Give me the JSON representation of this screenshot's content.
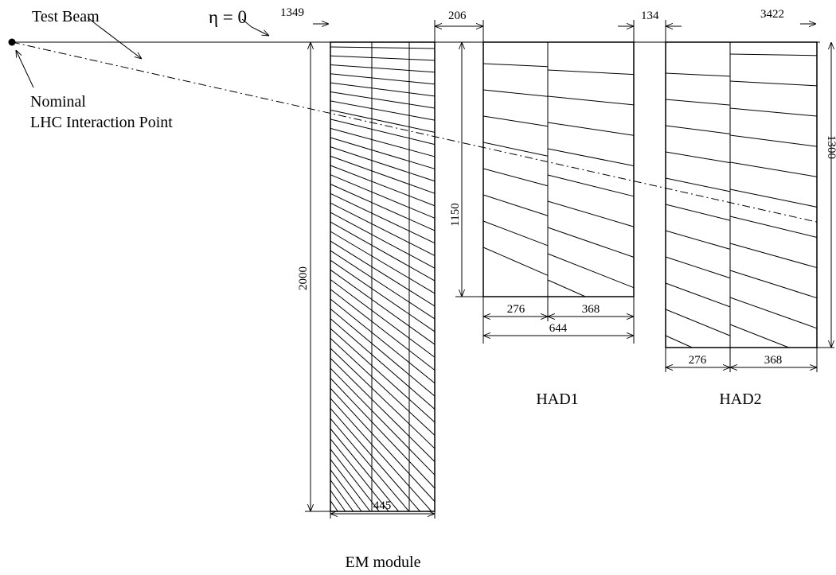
{
  "beam": {
    "label": "Test Beam",
    "eta": "η = 0",
    "interaction_point": [
      "Nominal",
      "LHC Interaction Point"
    ]
  },
  "dimensions": {
    "em_distance": "1349",
    "em_had1_gap": "206",
    "had1_had2_gap": "134",
    "had2_distance": "3422",
    "em_height": "2000",
    "had1_height": "1150",
    "had2_height": "1300",
    "em_depth": "445",
    "had1_front": "276",
    "had1_back": "368",
    "had1_depth": "644",
    "had2_front": "276",
    "had2_back": "368"
  },
  "modules": {
    "em": "EM module",
    "had1": "HAD1",
    "had2": "HAD2"
  }
}
